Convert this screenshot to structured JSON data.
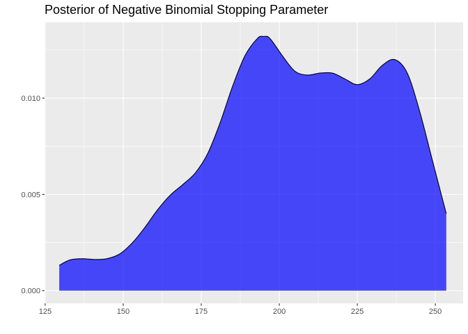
{
  "chart_data": {
    "type": "area",
    "title": "Posterior of Negative Binomial Stopping Parameter",
    "xlabel": "",
    "ylabel": "",
    "xlim": [
      124.8,
      258.9
    ],
    "ylim": [
      -0.00066,
      0.01394
    ],
    "x_ticks": [
      125,
      150,
      175,
      200,
      225,
      250
    ],
    "y_ticks": [
      0.0,
      0.005,
      0.01
    ],
    "x_tick_labels": [
      "125",
      "150",
      "175",
      "200",
      "225",
      "250"
    ],
    "y_tick_labels": [
      "0.000",
      "0.005",
      "0.010"
    ],
    "grid": true,
    "legend": "none",
    "colors": {
      "fill": "#0000ff",
      "line": "#000000",
      "panel": "#ebebeb",
      "grid": "#ffffff"
    },
    "series": [
      {
        "x": [
          129.5,
          133,
          137,
          141,
          145,
          149,
          153,
          157,
          161,
          165,
          169,
          173,
          177,
          181,
          185,
          189,
          193,
          195,
          197,
          201,
          205,
          209,
          213,
          217,
          221,
          225,
          229,
          233,
          237,
          241,
          245,
          249,
          253.5
        ],
        "y": [
          0.00132,
          0.0016,
          0.00166,
          0.00162,
          0.00167,
          0.00192,
          0.0025,
          0.0033,
          0.0042,
          0.00495,
          0.0055,
          0.0061,
          0.0071,
          0.0087,
          0.0106,
          0.0122,
          0.0131,
          0.0132,
          0.0131,
          0.0122,
          0.0114,
          0.0112,
          0.0113,
          0.0113,
          0.011,
          0.0107,
          0.011,
          0.0117,
          0.012,
          0.0113,
          0.0093,
          0.0068,
          0.004
        ]
      }
    ]
  }
}
